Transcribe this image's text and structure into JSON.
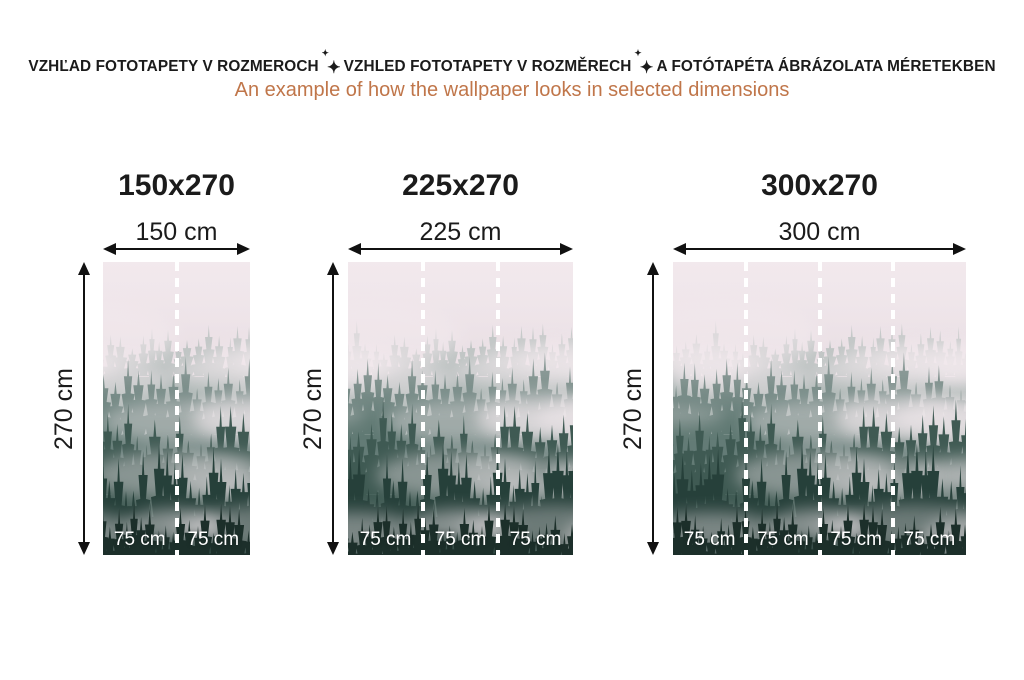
{
  "header": {
    "line1_parts": [
      "VZHĽAD FOTOTAPETY V ROZMEROCH",
      "VZHLED FOTOTAPETY V ROZMĚRECH",
      "A FOTÓTAPÉTA ÁBRÁZOLATA MÉRETEKBEN"
    ],
    "sparkle_glyph": "✦",
    "subtitle": "An example of how the wallpaper looks in selected dimensions"
  },
  "panels": [
    {
      "title": "150x270",
      "width_label": "150 cm",
      "height_label": "270 cm",
      "segments": [
        "75 cm",
        "75 cm"
      ]
    },
    {
      "title": "225x270",
      "width_label": "225 cm",
      "height_label": "270 cm",
      "segments": [
        "75 cm",
        "75 cm",
        "75 cm"
      ]
    },
    {
      "title": "300x270",
      "width_label": "300 cm",
      "height_label": "270 cm",
      "segments": [
        "75 cm",
        "75 cm",
        "75 cm",
        "75 cm"
      ]
    }
  ],
  "colors": {
    "heading_text": "#1b1b1b",
    "subtitle_text": "#c0764a",
    "dimension_lines": "#111111",
    "panel_seam_dashes": "#ffffff"
  },
  "wallpaper": {
    "alt": "Misty coniferous forest in fog",
    "palette": {
      "sky_top": "#ece2e7",
      "sky_mid": "#ddd2d8",
      "sky_bottom": "#ccc2c7",
      "trees_far": "#8ba09a",
      "trees_mid": "#5d7771",
      "trees_near": "#3f5a53",
      "trees_front": "#26403a",
      "trees_darkest": "#1c2f2a",
      "fog": "#f2e9ed"
    }
  }
}
